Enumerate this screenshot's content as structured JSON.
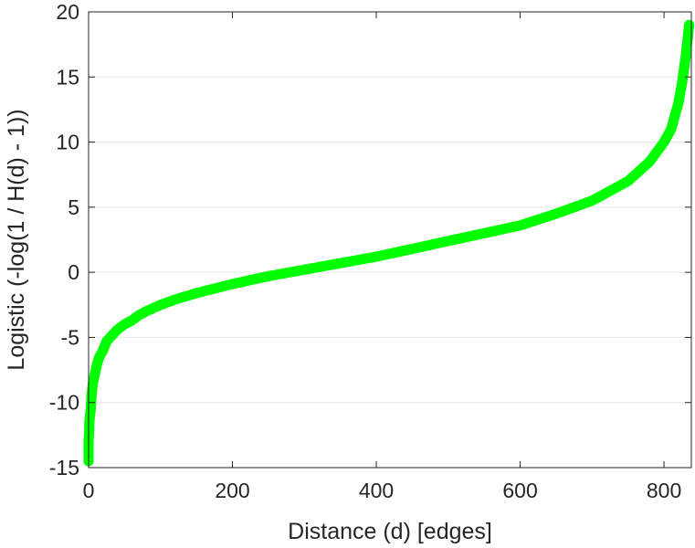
{
  "chart_data": {
    "type": "scatter",
    "title": "",
    "xlabel": "Distance (d) [edges]",
    "ylabel": "Logistic (-log(1 / H(d) - 1))",
    "xlim": [
      0,
      838
    ],
    "ylim": [
      -15,
      20
    ],
    "xticks": [
      0,
      200,
      400,
      600,
      800
    ],
    "yticks": [
      -15,
      -10,
      -5,
      0,
      5,
      10,
      15,
      20
    ],
    "grid": "horizontal",
    "legend": "none",
    "marker": "circle",
    "series_color": "#00ff00",
    "series": [
      {
        "x": [
          0,
          0,
          1,
          1,
          2,
          3,
          4,
          5,
          6,
          8,
          10,
          12,
          15,
          20,
          25,
          30,
          40,
          50,
          60,
          70,
          80,
          100,
          120,
          150,
          200,
          250,
          300,
          350,
          400,
          450,
          500,
          550,
          600,
          650,
          700,
          750,
          780,
          800,
          810,
          815,
          820,
          825,
          830,
          833,
          835
        ],
        "y": [
          -14.5,
          -13,
          -12,
          -11.5,
          -11,
          -10.5,
          -9.5,
          -9,
          -8.5,
          -8,
          -7.5,
          -7,
          -6.5,
          -6,
          -5.3,
          -5,
          -4.4,
          -4,
          -3.7,
          -3.3,
          -3,
          -2.5,
          -2.1,
          -1.6,
          -0.9,
          -0.3,
          0.2,
          0.7,
          1.2,
          1.8,
          2.4,
          3.0,
          3.6,
          4.5,
          5.5,
          7.0,
          8.5,
          10,
          11,
          12,
          13,
          14.5,
          16.5,
          18,
          19
        ]
      }
    ]
  }
}
